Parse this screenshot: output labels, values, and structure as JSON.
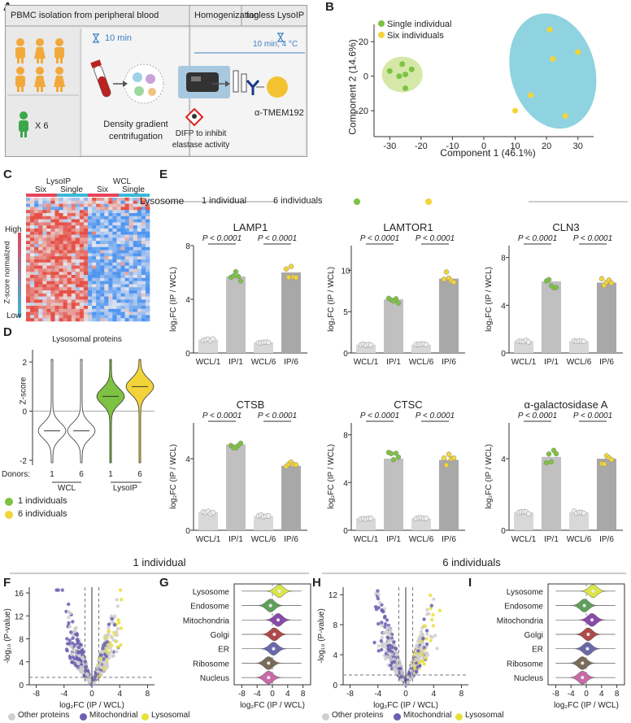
{
  "panels": {
    "A": "A",
    "B": "B",
    "C": "C",
    "D": "D",
    "E": "E",
    "F": "F",
    "G": "G",
    "H": "H",
    "I": "I"
  },
  "panelA": {
    "col1_title": "PBMC isolation from peripheral blood",
    "col2_title": "Homogenization",
    "col3_title": "tagless LysoIP",
    "time1": "10 min",
    "time2": "10 min, 4 °C",
    "donor_count": "X 6",
    "centrifugation": [
      "Density gradient",
      "centrifugation"
    ],
    "dfp": [
      "DIFP to inhibit",
      "elastase activity"
    ],
    "antibody": "α-TMEM192"
  },
  "panelB": {
    "legend": [
      {
        "label": "Single individual",
        "color": "#7dc242"
      },
      {
        "label": "Six individuals",
        "color": "#f2d43a"
      }
    ],
    "xlabel": "Component 1 (46.1%)",
    "ylabel": "Component 2 (14.6%)",
    "xticks": [
      "-30",
      "-20",
      "-10",
      "0",
      "10",
      "20",
      "30"
    ],
    "yticks": [
      "20",
      "0",
      "-20"
    ],
    "single_points": [
      [
        -30,
        3
      ],
      [
        -27,
        0
      ],
      [
        -26,
        7
      ],
      [
        -25,
        1
      ],
      [
        -23,
        4
      ],
      [
        -25,
        -7
      ]
    ],
    "six_points": [
      [
        21,
        27
      ],
      [
        22,
        10
      ],
      [
        30,
        14
      ],
      [
        15,
        -11
      ],
      [
        26,
        -23
      ],
      [
        10,
        -20
      ]
    ]
  },
  "panelC": {
    "group1": "LysoIP",
    "group2": "WCL",
    "sub": [
      "Six",
      "Single",
      "Six",
      "Single"
    ],
    "high": "High",
    "low": "Low",
    "scale": "Z-score normalized"
  },
  "panelD": {
    "title": "Lysosomal proteins",
    "ylabel": "Z-score",
    "yticks": [
      "2",
      "0",
      "-2"
    ],
    "donors_label": "Donors:",
    "donors": [
      "1",
      "6",
      "1",
      "6"
    ],
    "groups": [
      "WCL",
      "LysoIP"
    ],
    "legend": [
      {
        "label": "1 individuals",
        "color": "#7dc242"
      },
      {
        "label": "6 individuals",
        "color": "#f2d43a"
      }
    ]
  },
  "panelE": {
    "header": "Lysosome",
    "legend": [
      {
        "label": "1 individual",
        "color": "#7dc242"
      },
      {
        "label": "6 individuals",
        "color": "#f2d43a"
      }
    ],
    "ylabel": "log₂FC (IP / WCL)",
    "categories": [
      "WCL/1",
      "IP/1",
      "WCL/6",
      "IP/6"
    ],
    "pval": "P < 0.0001",
    "charts": [
      {
        "title": "LAMP1",
        "ymax": 8,
        "ticks": [
          "0",
          "4",
          "8"
        ],
        "values": [
          1,
          5.7,
          0.8,
          6
        ]
      },
      {
        "title": "LAMTOR1",
        "ymax": 13,
        "ticks": [
          "0",
          "5",
          "10"
        ],
        "values": [
          1,
          6.5,
          1,
          9
        ]
      },
      {
        "title": "CLN3",
        "ymax": 9,
        "ticks": [
          "0",
          "4",
          "8"
        ],
        "values": [
          1,
          6,
          1,
          5.9
        ]
      },
      {
        "title": "CTSB",
        "ymax": 6,
        "ticks": [
          "0",
          "4"
        ],
        "values": [
          1,
          4.8,
          0.8,
          3.6
        ]
      },
      {
        "title": "CTSC",
        "ymax": 9,
        "ticks": [
          "0",
          "4",
          "8"
        ],
        "values": [
          1,
          6,
          1,
          5.9
        ]
      },
      {
        "title": "α-galactosidase A",
        "ymax": 6,
        "ticks": [
          "0",
          "4"
        ],
        "values": [
          1,
          4.1,
          1,
          4
        ]
      }
    ]
  },
  "section_titles": {
    "left": "1 individual",
    "right": "6 individuals"
  },
  "volcano": {
    "ylabel": "-log₁₀ (P-value)",
    "xlabel": "log₂FC (IP / WCL)",
    "xticks": [
      "-8",
      "-4",
      "0",
      "4",
      "8"
    ],
    "F": {
      "ymax": 17,
      "yticks": [
        "0",
        "4",
        "8",
        "12",
        "16"
      ]
    },
    "H": {
      "ymax": 13,
      "yticks": [
        "0",
        "4",
        "8",
        "12"
      ]
    },
    "legend": [
      {
        "label": "Other proteins",
        "color": "#cfcfcf"
      },
      {
        "label": "Mitochondrial",
        "color": "#6a5fb0"
      },
      {
        "label": "Lysosomal",
        "color": "#e8e03a"
      }
    ]
  },
  "violins": {
    "xlabel": "log₂FC (IP / WCL)",
    "xticks": [
      "-8",
      "-4",
      "0",
      "4",
      "8"
    ],
    "compartments": [
      {
        "name": "Lysosome",
        "color": "#d9e54a",
        "center": 1.8
      },
      {
        "name": "Endosome",
        "color": "#5fa05a",
        "center": -0.5
      },
      {
        "name": "Mitochondria",
        "color": "#8a4aa8",
        "center": 1.5
      },
      {
        "name": "Golgi",
        "color": "#b04a4a",
        "center": 0.5
      },
      {
        "name": "ER",
        "color": "#6a6aaa",
        "center": 0.3
      },
      {
        "name": "Ribosome",
        "color": "#7a6a5a",
        "center": -1
      },
      {
        "name": "Nucleus",
        "color": "#c86aa8",
        "center": -1
      }
    ]
  }
}
